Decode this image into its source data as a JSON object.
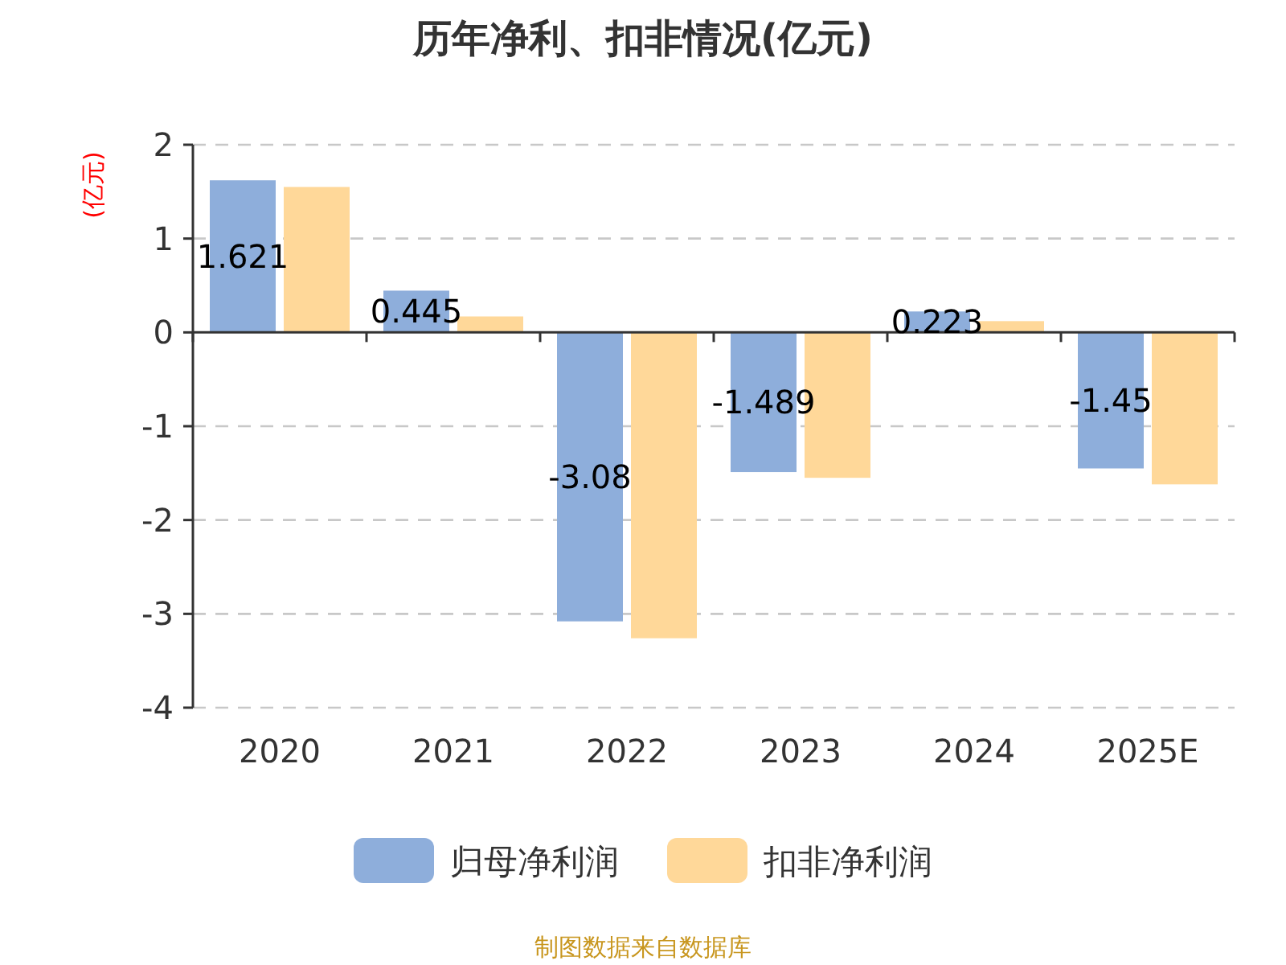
{
  "chart_data": {
    "type": "bar",
    "title": "历年净利、扣非情况(亿元)",
    "ylabel": "(亿元)",
    "categories": [
      "2020",
      "2021",
      "2022",
      "2023",
      "2024",
      "2025E"
    ],
    "series": [
      {
        "name": "归母净利润",
        "color": "#8eaedb",
        "values": [
          1.621,
          0.445,
          -3.08,
          -1.489,
          0.223,
          -1.45
        ],
        "value_labels": [
          "1.621",
          "0.445",
          "-3.08",
          "-1.489",
          "0.223",
          "-1.45"
        ]
      },
      {
        "name": "扣非净利润",
        "color": "#ffd899",
        "values": [
          1.55,
          0.17,
          -3.26,
          -1.55,
          0.12,
          -1.62
        ]
      }
    ],
    "ylim": [
      -4,
      2
    ],
    "yticks": [
      -4,
      -3,
      -2,
      -1,
      0,
      1,
      2
    ],
    "grid": "y",
    "legend": "bottom",
    "annotations": [
      "制图数据来自数据库"
    ]
  }
}
